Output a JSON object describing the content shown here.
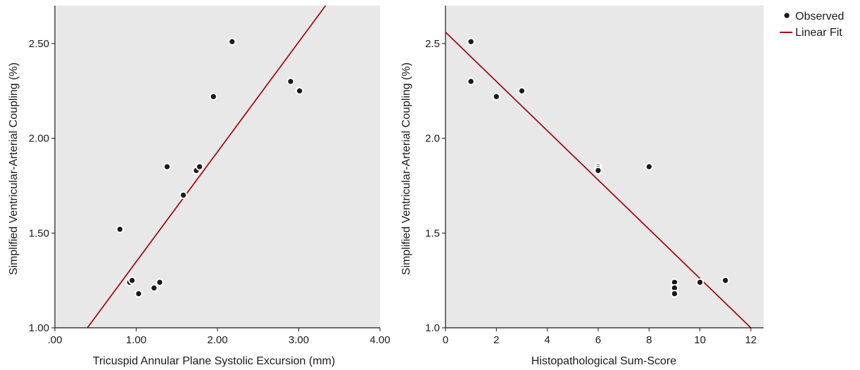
{
  "colors": {
    "plot_background": "#e8e8e8",
    "fit_line": "#a01010",
    "marker": "#1a1a1a",
    "axis": "#1a1a1a"
  },
  "legend": {
    "observed_label": "Observed",
    "fit_label": "Linear Fit"
  },
  "chart_data": [
    {
      "type": "scatter",
      "title": "",
      "xlabel": "Tricuspid Annular Plane Systolic Excursion (mm)",
      "ylabel": "Simplified Ventricular-Arterial Coupling (%)",
      "xlim": [
        0,
        4
      ],
      "ylim": [
        1.0,
        2.7
      ],
      "xticks": [
        0,
        1,
        2,
        3,
        4
      ],
      "xtick_labels": [
        ".00",
        "1.00",
        "2.00",
        "3.00",
        "4.00"
      ],
      "yticks": [
        1.0,
        1.5,
        2.0,
        2.5
      ],
      "ytick_labels": [
        "1.00",
        "1.50",
        "2.00",
        "2.50"
      ],
      "points": [
        {
          "x": 0.8,
          "y": 1.52
        },
        {
          "x": 0.92,
          "y": 1.24
        },
        {
          "x": 0.95,
          "y": 1.25
        },
        {
          "x": 1.03,
          "y": 1.18
        },
        {
          "x": 1.22,
          "y": 1.21
        },
        {
          "x": 1.29,
          "y": 1.24
        },
        {
          "x": 1.38,
          "y": 1.85
        },
        {
          "x": 1.58,
          "y": 1.7
        },
        {
          "x": 1.74,
          "y": 1.83
        },
        {
          "x": 1.78,
          "y": 1.85
        },
        {
          "x": 1.95,
          "y": 2.22
        },
        {
          "x": 2.18,
          "y": 2.51
        },
        {
          "x": 2.9,
          "y": 2.3
        },
        {
          "x": 3.01,
          "y": 2.25
        }
      ],
      "fit_line": {
        "x": [
          0.4,
          3.33
        ],
        "y": [
          1.0,
          2.7
        ]
      }
    },
    {
      "type": "scatter",
      "title": "",
      "xlabel": "Histopathological Sum-Score",
      "ylabel": "Simplified Ventricular-Arterial Coupling (%)",
      "xlim": [
        0,
        12.5
      ],
      "ylim": [
        1.0,
        2.7
      ],
      "xticks": [
        0,
        2,
        4,
        6,
        8,
        10,
        12
      ],
      "xtick_labels": [
        "0",
        "2",
        "4",
        "6",
        "8",
        "10",
        "12"
      ],
      "yticks": [
        1.0,
        1.5,
        2.0,
        2.5
      ],
      "ytick_labels": [
        "1.0",
        "1.5",
        "2.0",
        "2.5"
      ],
      "points": [
        {
          "x": 1,
          "y": 2.51
        },
        {
          "x": 1,
          "y": 2.3
        },
        {
          "x": 2,
          "y": 2.22
        },
        {
          "x": 3,
          "y": 2.25
        },
        {
          "x": 6,
          "y": 1.85
        },
        {
          "x": 6,
          "y": 1.84
        },
        {
          "x": 6,
          "y": 1.83
        },
        {
          "x": 8,
          "y": 1.85
        },
        {
          "x": 9,
          "y": 1.24
        },
        {
          "x": 9,
          "y": 1.21
        },
        {
          "x": 9,
          "y": 1.18
        },
        {
          "x": 10,
          "y": 1.24
        },
        {
          "x": 11,
          "y": 1.25
        }
      ],
      "fit_line": {
        "x": [
          0,
          12
        ],
        "y": [
          2.56,
          1.0
        ]
      }
    }
  ]
}
